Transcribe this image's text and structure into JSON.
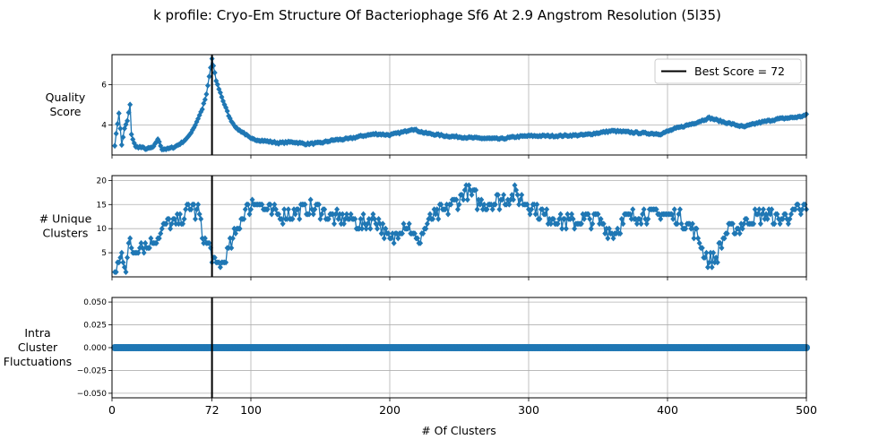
{
  "title": "k profile: Cryo-Em Structure Of Bacteriophage Sf6 At 2.9 Angstrom Resolution (5l35)",
  "xlabel": "# Of Clusters",
  "best_k": 72,
  "legend_label": "Best Score = 72",
  "colors": {
    "series": "#1f77b4",
    "best_line": "#000000",
    "grid": "#b0b0b0"
  },
  "chart_data": [
    {
      "type": "line",
      "ylabel_lines": [
        "Quality",
        "Score"
      ],
      "xlim": [
        0,
        500
      ],
      "ylim": [
        2.5,
        7.5
      ],
      "yticks": [
        4,
        6
      ],
      "ytick_labels": [
        "4",
        "6"
      ],
      "xticks": [
        0,
        100,
        200,
        300,
        400,
        500
      ],
      "grid": true,
      "legend": "upper-right",
      "keypoints": [
        [
          2,
          3.0
        ],
        [
          5,
          4.6
        ],
        [
          7,
          3.0
        ],
        [
          9,
          3.8
        ],
        [
          11,
          4.2
        ],
        [
          13,
          5.0
        ],
        [
          14,
          3.5
        ],
        [
          17,
          2.9
        ],
        [
          20,
          2.9
        ],
        [
          25,
          2.8
        ],
        [
          30,
          2.9
        ],
        [
          33,
          3.3
        ],
        [
          36,
          2.8
        ],
        [
          40,
          2.8
        ],
        [
          45,
          2.9
        ],
        [
          50,
          3.1
        ],
        [
          55,
          3.4
        ],
        [
          60,
          4.0
        ],
        [
          65,
          4.8
        ],
        [
          68,
          5.5
        ],
        [
          72,
          7.3
        ],
        [
          75,
          6.2
        ],
        [
          80,
          5.2
        ],
        [
          85,
          4.3
        ],
        [
          90,
          3.8
        ],
        [
          95,
          3.6
        ],
        [
          100,
          3.3
        ],
        [
          110,
          3.2
        ],
        [
          120,
          3.1
        ],
        [
          130,
          3.15
        ],
        [
          140,
          3.05
        ],
        [
          150,
          3.1
        ],
        [
          160,
          3.25
        ],
        [
          170,
          3.3
        ],
        [
          180,
          3.45
        ],
        [
          190,
          3.55
        ],
        [
          200,
          3.5
        ],
        [
          210,
          3.65
        ],
        [
          216,
          3.8
        ],
        [
          225,
          3.6
        ],
        [
          240,
          3.45
        ],
        [
          260,
          3.35
        ],
        [
          280,
          3.3
        ],
        [
          290,
          3.4
        ],
        [
          300,
          3.45
        ],
        [
          320,
          3.45
        ],
        [
          340,
          3.5
        ],
        [
          360,
          3.7
        ],
        [
          380,
          3.6
        ],
        [
          395,
          3.55
        ],
        [
          405,
          3.8
        ],
        [
          420,
          4.1
        ],
        [
          430,
          4.35
        ],
        [
          440,
          4.15
        ],
        [
          455,
          3.9
        ],
        [
          465,
          4.1
        ],
        [
          480,
          4.3
        ],
        [
          495,
          4.4
        ],
        [
          500,
          4.5
        ]
      ]
    },
    {
      "type": "line",
      "ylabel_lines": [
        "# Unique",
        "Clusters"
      ],
      "xlim": [
        0,
        500
      ],
      "ylim": [
        0,
        21
      ],
      "yticks": [
        5,
        10,
        15,
        20
      ],
      "ytick_labels": [
        "5",
        "10",
        "15",
        "20"
      ],
      "xticks": [
        0,
        100,
        200,
        300,
        400,
        500
      ],
      "grid": true,
      "keypoints": [
        [
          2,
          1
        ],
        [
          5,
          3
        ],
        [
          7,
          5
        ],
        [
          10,
          2
        ],
        [
          12,
          7
        ],
        [
          15,
          5
        ],
        [
          20,
          7
        ],
        [
          25,
          6
        ],
        [
          30,
          8
        ],
        [
          35,
          9
        ],
        [
          40,
          11
        ],
        [
          45,
          11
        ],
        [
          50,
          12
        ],
        [
          55,
          14
        ],
        [
          58,
          15
        ],
        [
          60,
          13
        ],
        [
          62,
          14
        ],
        [
          65,
          9
        ],
        [
          68,
          7
        ],
        [
          70,
          6
        ],
        [
          72,
          4
        ],
        [
          75,
          2
        ],
        [
          80,
          3
        ],
        [
          85,
          6
        ],
        [
          90,
          10
        ],
        [
          95,
          13
        ],
        [
          100,
          15
        ],
        [
          105,
          16
        ],
        [
          110,
          14
        ],
        [
          120,
          13
        ],
        [
          130,
          13
        ],
        [
          140,
          14
        ],
        [
          150,
          14
        ],
        [
          160,
          12
        ],
        [
          170,
          12
        ],
        [
          180,
          11
        ],
        [
          190,
          12
        ],
        [
          195,
          10
        ],
        [
          200,
          7
        ],
        [
          205,
          9
        ],
        [
          210,
          11
        ],
        [
          215,
          10
        ],
        [
          220,
          7
        ],
        [
          225,
          10
        ],
        [
          230,
          12
        ],
        [
          240,
          14
        ],
        [
          250,
          16
        ],
        [
          255,
          18
        ],
        [
          260,
          17
        ],
        [
          265,
          15
        ],
        [
          270,
          15
        ],
        [
          280,
          16
        ],
        [
          290,
          17
        ],
        [
          300,
          15
        ],
        [
          310,
          13
        ],
        [
          320,
          12
        ],
        [
          330,
          11
        ],
        [
          340,
          12
        ],
        [
          350,
          12
        ],
        [
          360,
          9
        ],
        [
          365,
          10
        ],
        [
          370,
          12
        ],
        [
          380,
          13
        ],
        [
          390,
          13
        ],
        [
          400,
          13
        ],
        [
          410,
          12
        ],
        [
          420,
          9
        ],
        [
          425,
          6
        ],
        [
          430,
          3
        ],
        [
          435,
          4
        ],
        [
          440,
          8
        ],
        [
          445,
          10
        ],
        [
          450,
          10
        ],
        [
          460,
          12
        ],
        [
          470,
          13
        ],
        [
          480,
          12
        ],
        [
          490,
          13
        ],
        [
          500,
          14
        ]
      ]
    },
    {
      "type": "line",
      "ylabel_lines": [
        "Intra",
        "Cluster",
        "Fluctuations"
      ],
      "xlim": [
        0,
        500
      ],
      "ylim": [
        -0.055,
        0.055
      ],
      "yticks": [
        -0.05,
        -0.025,
        0.0,
        0.025,
        0.05
      ],
      "ytick_labels": [
        "−0.050",
        "−0.025",
        "0.000",
        "0.025",
        "0.050"
      ],
      "xticks": [
        0,
        72,
        100,
        200,
        300,
        400,
        500
      ],
      "xtick_labels": [
        "0",
        "72",
        "100",
        "200",
        "300",
        "400",
        "500"
      ],
      "grid": true,
      "constant": 0.0
    }
  ]
}
